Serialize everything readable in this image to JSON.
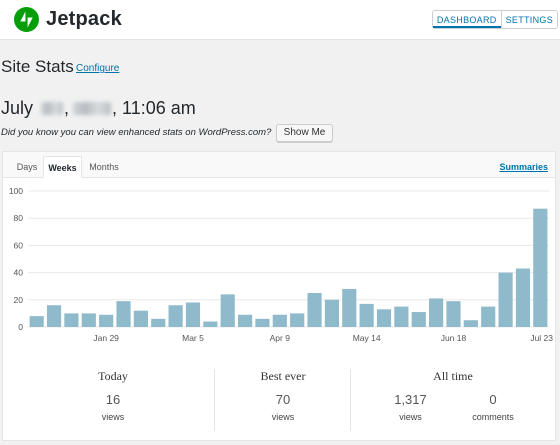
{
  "app": {
    "logo_text": "Jetpack",
    "nav": [
      {
        "label": "DASHBOARD"
      },
      {
        "label": "SETTINGS"
      }
    ]
  },
  "header": {
    "title": "Site Stats",
    "configure_label": "Configure",
    "date_month": "July",
    "date_sep": ",",
    "date_time": ", 11:06 am",
    "hint": "Did you know you can view enhanced stats on WordPress.com?",
    "show_me_label": "Show Me"
  },
  "tabs": [
    {
      "label": "Days"
    },
    {
      "label": "Weeks"
    },
    {
      "label": "Months"
    }
  ],
  "active_tab": "Weeks",
  "summaries_label": "Summaries",
  "chart_data": {
    "type": "bar",
    "color": "#8fbacb",
    "ylim": [
      0,
      100
    ],
    "y_ticks": [
      0,
      20,
      40,
      60,
      80,
      100
    ],
    "x_tick_labels": [
      {
        "index": 4,
        "label": "Jan 29"
      },
      {
        "index": 9,
        "label": "Mar 5"
      },
      {
        "index": 14,
        "label": "Apr 9"
      },
      {
        "index": 19,
        "label": "May 14"
      },
      {
        "index": 24,
        "label": "Jun 18"
      },
      {
        "index": 29,
        "label": "Jul 23"
      }
    ],
    "values": [
      8,
      16,
      10,
      10,
      9,
      19,
      12,
      6,
      16,
      18,
      4,
      24,
      9,
      6,
      9,
      10,
      25,
      20,
      28,
      17,
      13,
      15,
      11,
      21,
      19,
      5,
      15,
      40,
      43,
      87
    ]
  },
  "summary": {
    "today": {
      "title": "Today",
      "value": "16",
      "unit": "views"
    },
    "best": {
      "title": "Best ever",
      "value": "70",
      "unit": "views"
    },
    "alltime": {
      "title": "All time",
      "views_value": "1,317",
      "views_unit": "views",
      "comments_value": "0",
      "comments_unit": "comments"
    }
  }
}
